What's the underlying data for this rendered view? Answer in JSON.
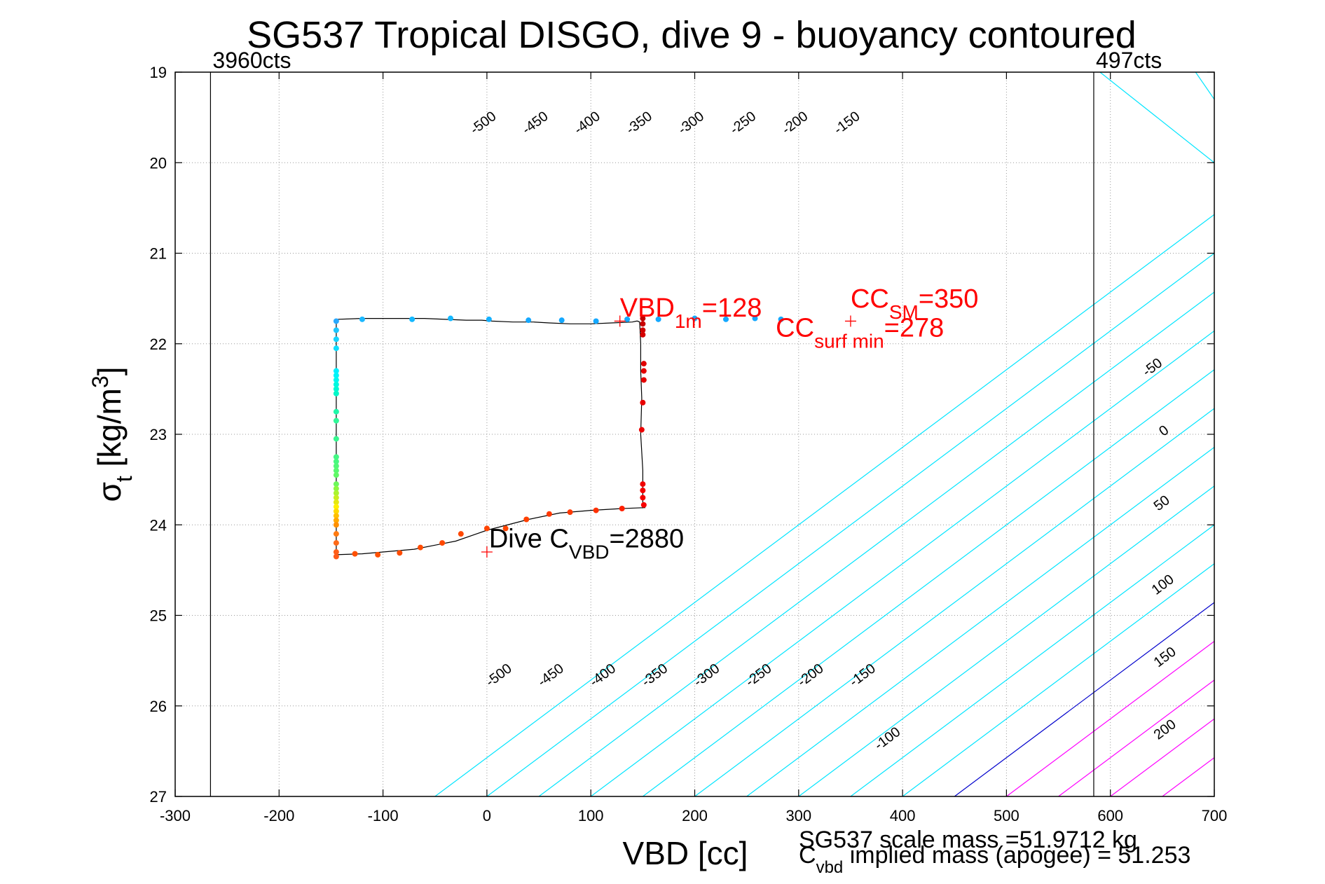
{
  "colors": {
    "contour_negative": "#00e5ff",
    "contour_zero": "#0000cc",
    "contour_positive": "#ff00ff",
    "trajectory_line": "#000000",
    "annotation_red": "#ff0000",
    "limit_lines": "#000000",
    "grid": "#999999"
  },
  "chart_data": {
    "type": "scatter",
    "title": "SG537 Tropical DISGO, dive 9 - buoyancy contoured",
    "xlabel": "VBD [cc]",
    "ylabel": {
      "base": "σ",
      "sub": "t",
      "rest": " [kg/m",
      "sup": "3",
      "end": "]"
    },
    "xlim": [
      -300,
      700
    ],
    "ylim": [
      27,
      19
    ],
    "y_reversed": true,
    "grid": true,
    "xticks": [
      -300,
      -200,
      -100,
      0,
      100,
      200,
      300,
      400,
      500,
      600,
      700
    ],
    "yticks": [
      19,
      20,
      21,
      22,
      23,
      24,
      25,
      26,
      27
    ],
    "vlines": [
      {
        "x": -266,
        "label": "3960cts"
      },
      {
        "x": 584,
        "label": "497cts"
      }
    ],
    "contour_slope": 0.00857,
    "contours": [
      {
        "level": -500,
        "x_at_27": -50,
        "label": "-500",
        "label_at": [
          [
            14,
            25.7
          ],
          [
            -1,
            19.6
          ]
        ]
      },
      {
        "level": -450,
        "x_at_27": 0,
        "label": "-450",
        "label_at": [
          [
            64,
            25.7
          ],
          [
            49,
            19.6
          ]
        ]
      },
      {
        "level": -400,
        "x_at_27": 50,
        "label": "-400",
        "label_at": [
          [
            114,
            25.7
          ],
          [
            99,
            19.6
          ]
        ]
      },
      {
        "level": -350,
        "x_at_27": 100,
        "label": "-350",
        "label_at": [
          [
            164,
            25.7
          ],
          [
            149,
            19.6
          ]
        ]
      },
      {
        "level": -300,
        "x_at_27": 150,
        "label": "-300",
        "label_at": [
          [
            214,
            25.7
          ],
          [
            199,
            19.6
          ]
        ]
      },
      {
        "level": -250,
        "x_at_27": 200,
        "label": "-250",
        "label_at": [
          [
            264,
            25.7
          ],
          [
            249,
            19.6
          ]
        ]
      },
      {
        "level": -200,
        "x_at_27": 250,
        "label": "-200",
        "label_at": [
          [
            314,
            25.7
          ],
          [
            299,
            19.6
          ]
        ]
      },
      {
        "level": -150,
        "x_at_27": 300,
        "label": "-150",
        "label_at": [
          [
            364,
            25.7
          ],
          [
            349,
            19.6
          ]
        ]
      },
      {
        "level": -100,
        "x_at_27": 350,
        "label": "-100",
        "label_at": [
          [
            388,
            26.4
          ]
        ]
      },
      {
        "level": -50,
        "x_at_27": 400,
        "label": "-50",
        "label_at": [
          [
            643,
            22.3
          ]
        ]
      },
      {
        "level": 0,
        "x_at_27": 450,
        "label": "0",
        "label_at": [
          [
            654,
            23.0
          ]
        ]
      },
      {
        "level": 50,
        "x_at_27": 500,
        "label": "50",
        "label_at": [
          [
            652,
            23.8
          ]
        ]
      },
      {
        "level": 100,
        "x_at_27": 550,
        "label": "100",
        "label_at": [
          [
            653,
            24.7
          ]
        ]
      },
      {
        "level": 150,
        "x_at_27": 600,
        "label": "150",
        "label_at": [
          [
            655,
            25.5
          ]
        ]
      },
      {
        "level": 200,
        "x_at_27": 650,
        "label": "200",
        "label_at": [
          [
            655,
            26.3
          ]
        ]
      }
    ],
    "extra_lines": [
      {
        "x": [
          590,
          700
        ],
        "y": [
          19.0,
          20.0
        ]
      },
      {
        "x": [
          682,
          700
        ],
        "y": [
          19.0,
          19.3
        ]
      }
    ],
    "trajectory": {
      "x": [
        -145,
        -145,
        -145,
        -145,
        -145,
        -145,
        -145,
        -145,
        -145,
        -145,
        -120,
        -100,
        -80,
        -60,
        -40,
        -20,
        -5,
        5,
        25,
        45,
        60,
        80,
        100,
        120,
        140,
        144,
        145,
        147,
        148,
        148,
        149,
        148,
        150,
        150,
        150,
        150,
        151,
        151,
        152,
        130,
        100,
        70,
        40,
        0,
        -30,
        -70,
        -120,
        -145
      ],
      "y": [
        24.33,
        24.15,
        23.95,
        23.6,
        23.3,
        23.0,
        22.7,
        22.4,
        22.1,
        21.73,
        21.72,
        21.72,
        21.72,
        21.72,
        21.73,
        21.74,
        21.74,
        21.75,
        21.76,
        21.76,
        21.77,
        21.78,
        21.78,
        21.77,
        21.76,
        21.75,
        21.75,
        21.76,
        22.0,
        22.3,
        22.6,
        23.0,
        23.4,
        23.6,
        23.75,
        23.81,
        23.8,
        23.79,
        23.81,
        23.82,
        23.84,
        23.87,
        23.94,
        24.06,
        24.18,
        24.27,
        24.32,
        24.33
      ]
    },
    "samples": [
      {
        "x": -145,
        "y": 21.75,
        "c": "#27a9ff"
      },
      {
        "x": -145,
        "y": 21.85,
        "c": "#1cc6ff"
      },
      {
        "x": -145,
        "y": 21.95,
        "c": "#16d3ff"
      },
      {
        "x": -145,
        "y": 22.05,
        "c": "#0fdeff"
      },
      {
        "x": -145,
        "y": 22.3,
        "c": "#00f0ff"
      },
      {
        "x": -145,
        "y": 22.35,
        "c": "#00f4f8"
      },
      {
        "x": -145,
        "y": 22.4,
        "c": "#00f6ee"
      },
      {
        "x": -145,
        "y": 22.45,
        "c": "#00f8e0"
      },
      {
        "x": -145,
        "y": 22.5,
        "c": "#00f8d4"
      },
      {
        "x": -145,
        "y": 22.55,
        "c": "#00f8c8"
      },
      {
        "x": -145,
        "y": 22.75,
        "c": "#1ef8a8"
      },
      {
        "x": -145,
        "y": 22.85,
        "c": "#30f898"
      },
      {
        "x": -145,
        "y": 23.05,
        "c": "#38f890"
      },
      {
        "x": -145,
        "y": 23.25,
        "c": "#44f884"
      },
      {
        "x": -145,
        "y": 23.3,
        "c": "#48f880"
      },
      {
        "x": -145,
        "y": 23.35,
        "c": "#50f878"
      },
      {
        "x": -145,
        "y": 23.4,
        "c": "#58f870"
      },
      {
        "x": -145,
        "y": 23.45,
        "c": "#60f866"
      },
      {
        "x": -145,
        "y": 23.55,
        "c": "#6cf85c"
      },
      {
        "x": -145,
        "y": 23.6,
        "c": "#8cf840"
      },
      {
        "x": -145,
        "y": 23.65,
        "c": "#aaf430"
      },
      {
        "x": -145,
        "y": 23.7,
        "c": "#c8ee20"
      },
      {
        "x": -145,
        "y": 23.75,
        "c": "#e4e812"
      },
      {
        "x": -145,
        "y": 23.8,
        "c": "#fff000"
      },
      {
        "x": -145,
        "y": 23.85,
        "c": "#ffd800"
      },
      {
        "x": -145,
        "y": 23.9,
        "c": "#ffc000"
      },
      {
        "x": -145,
        "y": 23.95,
        "c": "#ffa800"
      },
      {
        "x": -145,
        "y": 24.0,
        "c": "#ff9000"
      },
      {
        "x": -145,
        "y": 24.1,
        "c": "#ff7a10"
      },
      {
        "x": -145,
        "y": 24.2,
        "c": "#ff6a18"
      },
      {
        "x": -145,
        "y": 24.3,
        "c": "#ff5e18"
      },
      {
        "x": -145,
        "y": 24.35,
        "c": "#ff5a18"
      },
      {
        "x": -120,
        "y": 21.73,
        "c": "#1cb8ff"
      },
      {
        "x": -72,
        "y": 21.73,
        "c": "#14b8ff"
      },
      {
        "x": -35,
        "y": 21.72,
        "c": "#14b8ff"
      },
      {
        "x": 2,
        "y": 21.73,
        "c": "#14b0ff"
      },
      {
        "x": 40,
        "y": 21.74,
        "c": "#14a8ff"
      },
      {
        "x": 72,
        "y": 21.74,
        "c": "#14a8ff"
      },
      {
        "x": 105,
        "y": 21.75,
        "c": "#14a8ff"
      },
      {
        "x": 135,
        "y": 21.73,
        "c": "#14a8ff"
      },
      {
        "x": 165,
        "y": 21.73,
        "c": "#14a8ff"
      },
      {
        "x": 200,
        "y": 21.72,
        "c": "#14a8ff"
      },
      {
        "x": 230,
        "y": 21.73,
        "c": "#14a8ff"
      },
      {
        "x": 258,
        "y": 21.72,
        "c": "#14a8ff"
      },
      {
        "x": 283,
        "y": 21.73,
        "c": "#14a8ff"
      },
      {
        "x": 150,
        "y": 21.72,
        "c": "#c00000"
      },
      {
        "x": 150,
        "y": 21.78,
        "c": "#c80000"
      },
      {
        "x": 150,
        "y": 21.85,
        "c": "#d00000"
      },
      {
        "x": 150,
        "y": 21.9,
        "c": "#d40000"
      },
      {
        "x": 151,
        "y": 22.22,
        "c": "#e00000"
      },
      {
        "x": 151,
        "y": 22.3,
        "c": "#e40000"
      },
      {
        "x": 151,
        "y": 22.4,
        "c": "#e40000"
      },
      {
        "x": 150,
        "y": 22.65,
        "c": "#e80000"
      },
      {
        "x": 149,
        "y": 22.95,
        "c": "#ec0000"
      },
      {
        "x": 150,
        "y": 23.55,
        "c": "#f00000"
      },
      {
        "x": 150,
        "y": 23.62,
        "c": "#f40000"
      },
      {
        "x": 150,
        "y": 23.7,
        "c": "#f40000"
      },
      {
        "x": 151,
        "y": 23.78,
        "c": "#f80000"
      },
      {
        "x": 130,
        "y": 23.82,
        "c": "#ff2000"
      },
      {
        "x": 105,
        "y": 23.84,
        "c": "#ff3000"
      },
      {
        "x": 80,
        "y": 23.86,
        "c": "#ff3800"
      },
      {
        "x": 60,
        "y": 23.88,
        "c": "#ff3800"
      },
      {
        "x": 38,
        "y": 23.94,
        "c": "#ff4000"
      },
      {
        "x": 18,
        "y": 24.04,
        "c": "#ff4400"
      },
      {
        "x": 0,
        "y": 24.04,
        "c": "#ff4400"
      },
      {
        "x": -25,
        "y": 24.1,
        "c": "#ff4800"
      },
      {
        "x": -43,
        "y": 24.2,
        "c": "#ff4800"
      },
      {
        "x": -64,
        "y": 24.25,
        "c": "#ff4c00"
      },
      {
        "x": -84,
        "y": 24.31,
        "c": "#ff4c00"
      },
      {
        "x": -105,
        "y": 24.33,
        "c": "#ff5000"
      },
      {
        "x": -127,
        "y": 24.32,
        "c": "#ff5000"
      }
    ],
    "markers": [
      {
        "name": "vbd-1m-marker",
        "x": 128,
        "y": 21.75,
        "color": "#ff0000"
      },
      {
        "name": "cc-sm-marker",
        "x": 350,
        "y": 21.75,
        "color": "#ff0000"
      },
      {
        "name": "dive-cvbd-marker",
        "x": 0,
        "y": 24.3,
        "color": "#ff0000"
      }
    ],
    "annotations": [
      {
        "name": "vbd-1m-annotation",
        "x": 128,
        "y": 21.7,
        "base": "VBD",
        "sub": "1m",
        "rest": "=128",
        "color": "#ff0000"
      },
      {
        "name": "cc-sm-annotation",
        "x": 350,
        "y": 21.6,
        "base": "CC",
        "sub": "SM",
        "rest": "=350",
        "color": "#ff0000"
      },
      {
        "name": "cc-surf-min-annotation",
        "x": 278,
        "y": 21.92,
        "base": "CC",
        "sub": "surf min",
        "rest": "=278",
        "color": "#ff0000"
      },
      {
        "name": "dive-cvbd-annotation",
        "x": 2,
        "y": 24.25,
        "base": "Dive C",
        "sub": "VBD",
        "rest": "=2880",
        "color": "#000000"
      }
    ],
    "footer": {
      "scale_mass": "SG537 scale mass =51.9712 kg",
      "implied_mass_base": "C",
      "implied_mass_sub": "vbd",
      "implied_mass_rest": " implied mass (apogee) = 51.253"
    }
  }
}
